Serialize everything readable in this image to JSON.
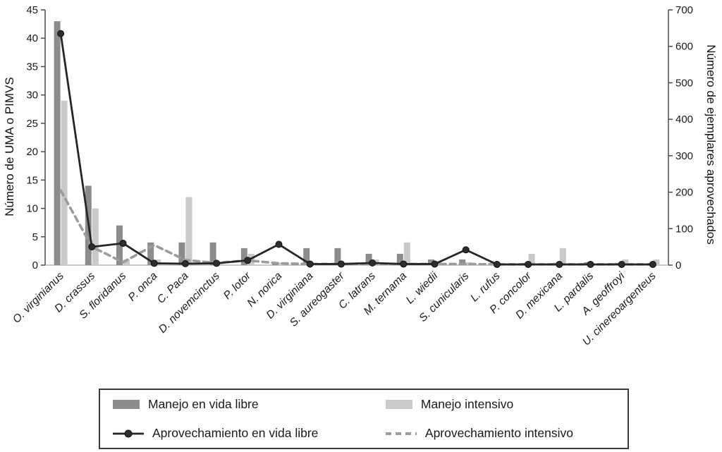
{
  "chart_data": {
    "type": "bar",
    "overlay": "line",
    "title": "",
    "ylabel_left": "Número de UMA o PIMVS",
    "ylabel_right": "Número de ejemplares aprovechados",
    "ylim_left": [
      0,
      45
    ],
    "ytick_step_left": 5,
    "ylim_right": [
      0,
      700
    ],
    "ytick_step_right": 100,
    "grid": false,
    "legend_position": "bottom",
    "categories": [
      "O. virginianus",
      "D. crassus",
      "S. floridanus",
      "P. onca",
      "C. Paca",
      "D. novemcinctus",
      "P. lotor",
      "N. norica",
      "D. virginiana",
      "S. aureogaster",
      "C. latrans",
      "M. ternama",
      "L. wiedii",
      "S. cunicularis",
      "L. rufus",
      "P. concolor",
      "D. mexicana",
      "L. pardalis",
      "A. geoffroyi",
      "U. cinereoargenteus"
    ],
    "series": [
      {
        "name": "Manejo en vida libre",
        "type": "bar",
        "axis": "left",
        "color": "#8c8c8c",
        "values": [
          43,
          14,
          7,
          4,
          4,
          4,
          3,
          0.5,
          3,
          3,
          2,
          2,
          1,
          1,
          0.5,
          0.4,
          0.4,
          0.5,
          0.4,
          0
        ]
      },
      {
        "name": "Manejo intensivo",
        "type": "bar",
        "axis": "left",
        "color": "#c9c9c9",
        "values": [
          29,
          10,
          1,
          1,
          12,
          0.4,
          2,
          0.4,
          0.4,
          0,
          1,
          4,
          0.4,
          0.5,
          0.3,
          2,
          3,
          0.3,
          1,
          1
        ]
      },
      {
        "name": "Aprovechamiento en vida libre",
        "type": "line",
        "style": "solid",
        "marker": true,
        "axis": "right",
        "color": "#262626",
        "values": [
          635,
          50,
          60,
          5,
          4,
          5,
          13,
          57,
          3,
          3,
          6,
          3,
          3,
          42,
          2,
          2,
          2,
          2,
          2,
          2
        ]
      },
      {
        "name": "Aprovechamiento intensivo",
        "type": "line",
        "style": "dashed",
        "marker": false,
        "axis": "right",
        "color": "#9b9b9b",
        "values": [
          205,
          50,
          8,
          55,
          14,
          6,
          13,
          5,
          3,
          3,
          3,
          3,
          3,
          3,
          2,
          2,
          2,
          2,
          2,
          2
        ]
      }
    ]
  }
}
